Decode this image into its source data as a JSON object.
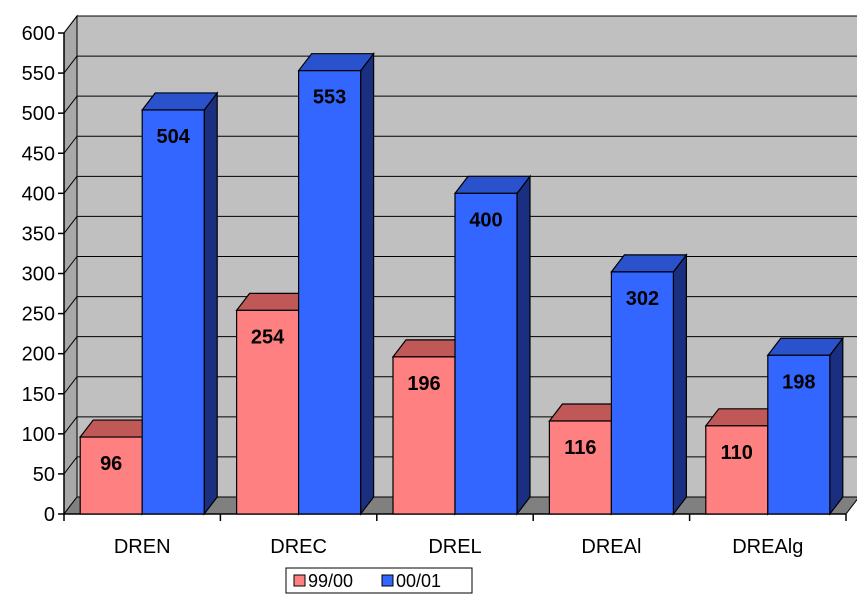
{
  "chart_data": {
    "type": "bar",
    "categories": [
      "DREN",
      "DREC",
      "DREL",
      "DREAl",
      "DREAlg"
    ],
    "series": [
      {
        "name": "99/00",
        "values": [
          96,
          254,
          196,
          116,
          110
        ],
        "color": "#ff8080",
        "top_color": "#c05858",
        "side_color": "#a04040"
      },
      {
        "name": "00/01",
        "values": [
          504,
          553,
          400,
          302,
          198
        ],
        "color": "#3366ff",
        "top_color": "#2a52cc",
        "side_color": "#1a2f80"
      }
    ],
    "ylim": [
      0,
      600
    ],
    "yticks": [
      0,
      50,
      100,
      150,
      200,
      250,
      300,
      350,
      400,
      450,
      500,
      550,
      600
    ],
    "grid": true,
    "legend_position": "bottom",
    "style": "3d-column",
    "wall_color": "#c0c0c0",
    "floor_color": "#808080"
  }
}
